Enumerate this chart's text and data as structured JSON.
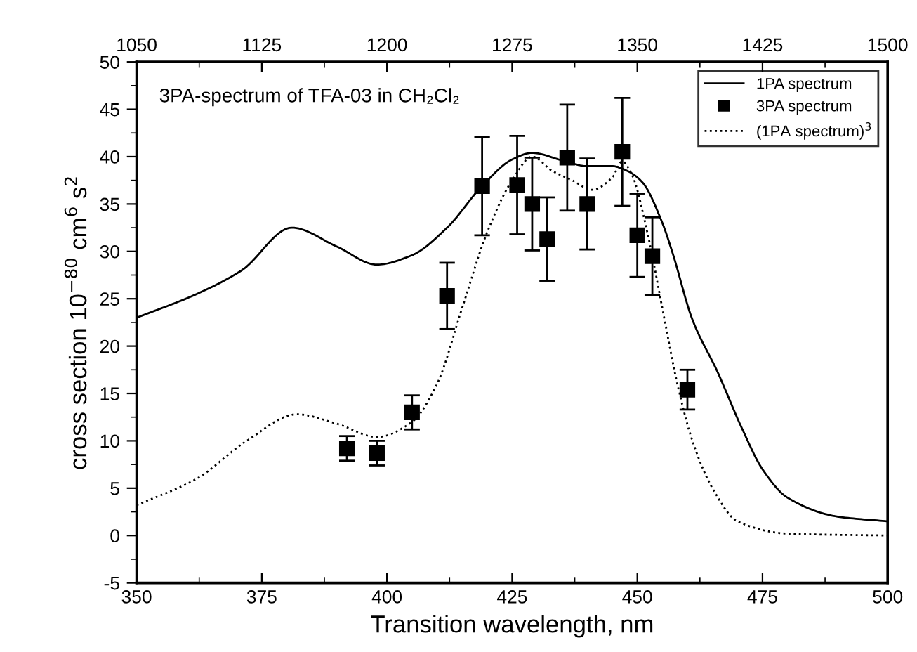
{
  "chart_data": {
    "type": "line",
    "ylabel": "cross section 10$^{−80}$ cm$^{6}$ s$^{2}$",
    "xlabel": "Transition wavelength, nm",
    "annotations": [
      "3PA-spectrum of TFA-03 in CH₂Cl₂"
    ],
    "xlim": [
      350,
      500
    ],
    "xticks": [
      350,
      375,
      400,
      425,
      450,
      475,
      500
    ],
    "ylim": [
      -5,
      50
    ],
    "yticks": [
      -5,
      0,
      5,
      10,
      15,
      20,
      25,
      30,
      35,
      40,
      45,
      50
    ],
    "x2lim": [
      1050,
      1500
    ],
    "x2ticks": [
      1050,
      1125,
      1200,
      1275,
      1350,
      1425,
      1500
    ],
    "legend": "top right",
    "grid": false,
    "series": [
      {
        "name": "1PA spectrum",
        "line_style": "solid",
        "marker": "none",
        "color": "#000000",
        "x": [
          350,
          362,
          371,
          381,
          390,
          398,
          405,
          412,
          419,
          425,
          429,
          435,
          440,
          445,
          448,
          451,
          455,
          457,
          461,
          466,
          471,
          475,
          480,
          490,
          500
        ],
        "values": [
          23,
          25.5,
          28,
          32.5,
          30.5,
          28.6,
          29.6,
          32.5,
          36.9,
          39.7,
          40.4,
          39.6,
          39,
          39,
          38.5,
          37.3,
          33,
          29.9,
          22.8,
          17.3,
          11.2,
          7,
          4,
          2,
          1.5
        ]
      },
      {
        "name": "3PA spectrum",
        "type": "scatter",
        "marker": "square",
        "color": "#000000",
        "x": [
          392,
          398,
          405,
          412,
          419,
          426,
          429,
          432,
          436,
          440,
          447,
          450,
          453,
          460
        ],
        "values": [
          9.2,
          8.7,
          13,
          25.3,
          36.9,
          37,
          35,
          31.3,
          39.9,
          35,
          40.5,
          31.7,
          29.5,
          15.4
        ],
        "errors": [
          1.3,
          1.3,
          1.8,
          3.5,
          5.2,
          5.2,
          4.9,
          4.4,
          5.6,
          4.8,
          5.7,
          4.4,
          4.1,
          2.1
        ]
      },
      {
        "name": "(1PA spectrum)$^{3}$",
        "line_style": "dotted",
        "marker": "none",
        "color": "#000000",
        "x": [
          350,
          362,
          372,
          382,
          390,
          398,
          405,
          410,
          415,
          420,
          425,
          429,
          433,
          437,
          441,
          445,
          447,
          449,
          452,
          455,
          458,
          461,
          465,
          470,
          480,
          500
        ],
        "values": [
          3.2,
          6,
          10,
          12.8,
          11.8,
          10.4,
          12,
          16,
          24,
          32,
          37.5,
          40,
          38.5,
          37.5,
          36.5,
          37.8,
          39.5,
          38,
          32,
          24,
          16,
          10,
          5,
          1.5,
          0.2,
          0
        ]
      }
    ]
  }
}
